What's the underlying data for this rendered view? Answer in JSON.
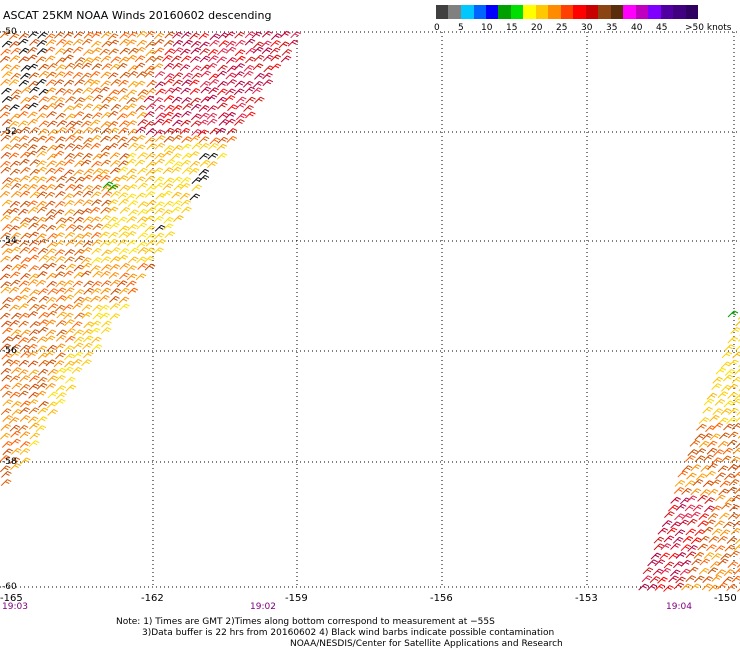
{
  "title": "ASCAT 25KM NOAA Winds 20160602 descending",
  "legend": {
    "colors": [
      "#404040",
      "#808080",
      "#00c8ff",
      "#0064ff",
      "#0000ff",
      "#00a000",
      "#00e000",
      "#ffff00",
      "#ffc800",
      "#ff8c00",
      "#ff4000",
      "#ff0000",
      "#c80000",
      "#8b4513",
      "#ff00ff",
      "#c000c0",
      "#8000ff",
      "#400080"
    ],
    "labels": [
      "0",
      "5",
      "10",
      "15",
      "20",
      "25",
      "30",
      "35",
      "40",
      "45",
      ">50 knots"
    ]
  },
  "axes": {
    "lon_labels": [
      "-165",
      "-162",
      "-159",
      "-156",
      "-153",
      "-150"
    ],
    "lat_labels": [
      "-50",
      "-52",
      "-54",
      "-56",
      "-58",
      "-60"
    ]
  },
  "times": [
    "19:03",
    "19:02",
    "19:04"
  ],
  "notes": [
    "Note: 1) Times are GMT 2)Times along bottom correspond to measurement at −55S",
    "3)Data buffer is 22 hrs from 20160602 4) Black wind barbs indicate possible contamination",
    "NOAA/NESDIS/Center for Satellite Applications and Research"
  ]
}
